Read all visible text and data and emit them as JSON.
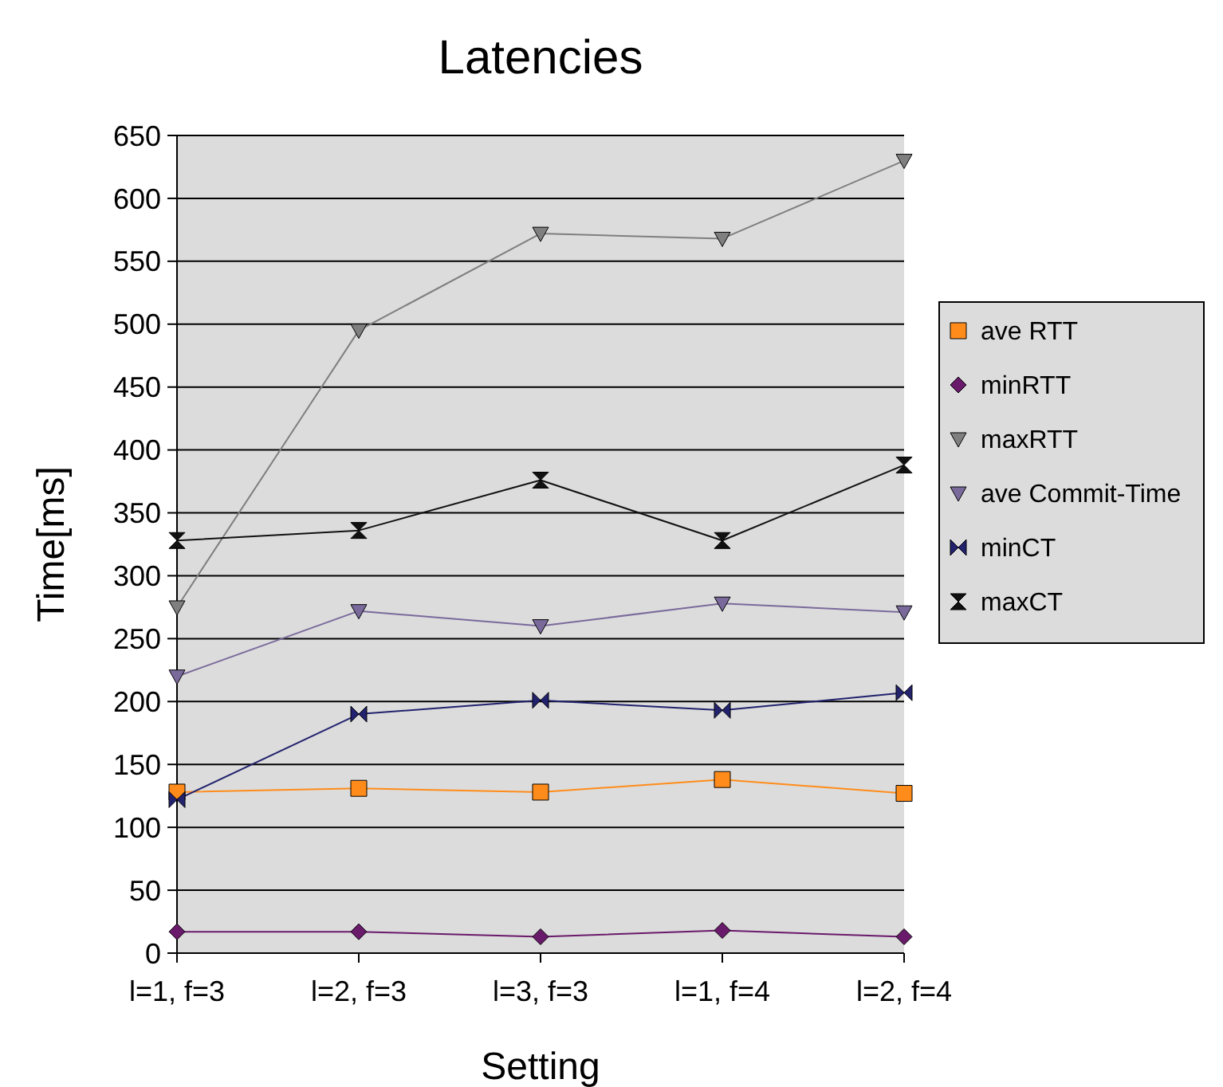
{
  "chart_data": {
    "type": "line",
    "title": "Latencies",
    "xlabel": "Setting",
    "ylabel": "Time[ms]",
    "categories": [
      "l=1, f=3",
      "l=2, f=3",
      "l=3, f=3",
      "l=1, f=4",
      "l=2, f=4"
    ],
    "ylim": [
      0,
      650
    ],
    "yticks": [
      0,
      50,
      100,
      150,
      200,
      250,
      300,
      350,
      400,
      450,
      500,
      550,
      600,
      650
    ],
    "grid": "y",
    "legend": "right",
    "series": [
      {
        "name": "ave RTT",
        "color": "#ff8c1a",
        "marker": "square",
        "values": [
          128,
          131,
          128,
          138,
          127
        ]
      },
      {
        "name": "minRTT",
        "color": "#6a1a6a",
        "marker": "diamond",
        "values": [
          17,
          17,
          13,
          18,
          13
        ]
      },
      {
        "name": "maxRTT",
        "color": "#7f7f7f",
        "marker": "triangle",
        "values": [
          275,
          495,
          572,
          568,
          630
        ]
      },
      {
        "name": "ave Commit-Time",
        "color": "#7a6a9c",
        "marker": "triangle",
        "values": [
          220,
          272,
          260,
          278,
          271
        ]
      },
      {
        "name": "minCT",
        "color": "#22226e",
        "marker": "cross",
        "values": [
          122,
          190,
          201,
          193,
          207
        ]
      },
      {
        "name": "maxCT",
        "color": "#111111",
        "marker": "star",
        "values": [
          328,
          336,
          376,
          328,
          388
        ]
      }
    ]
  }
}
